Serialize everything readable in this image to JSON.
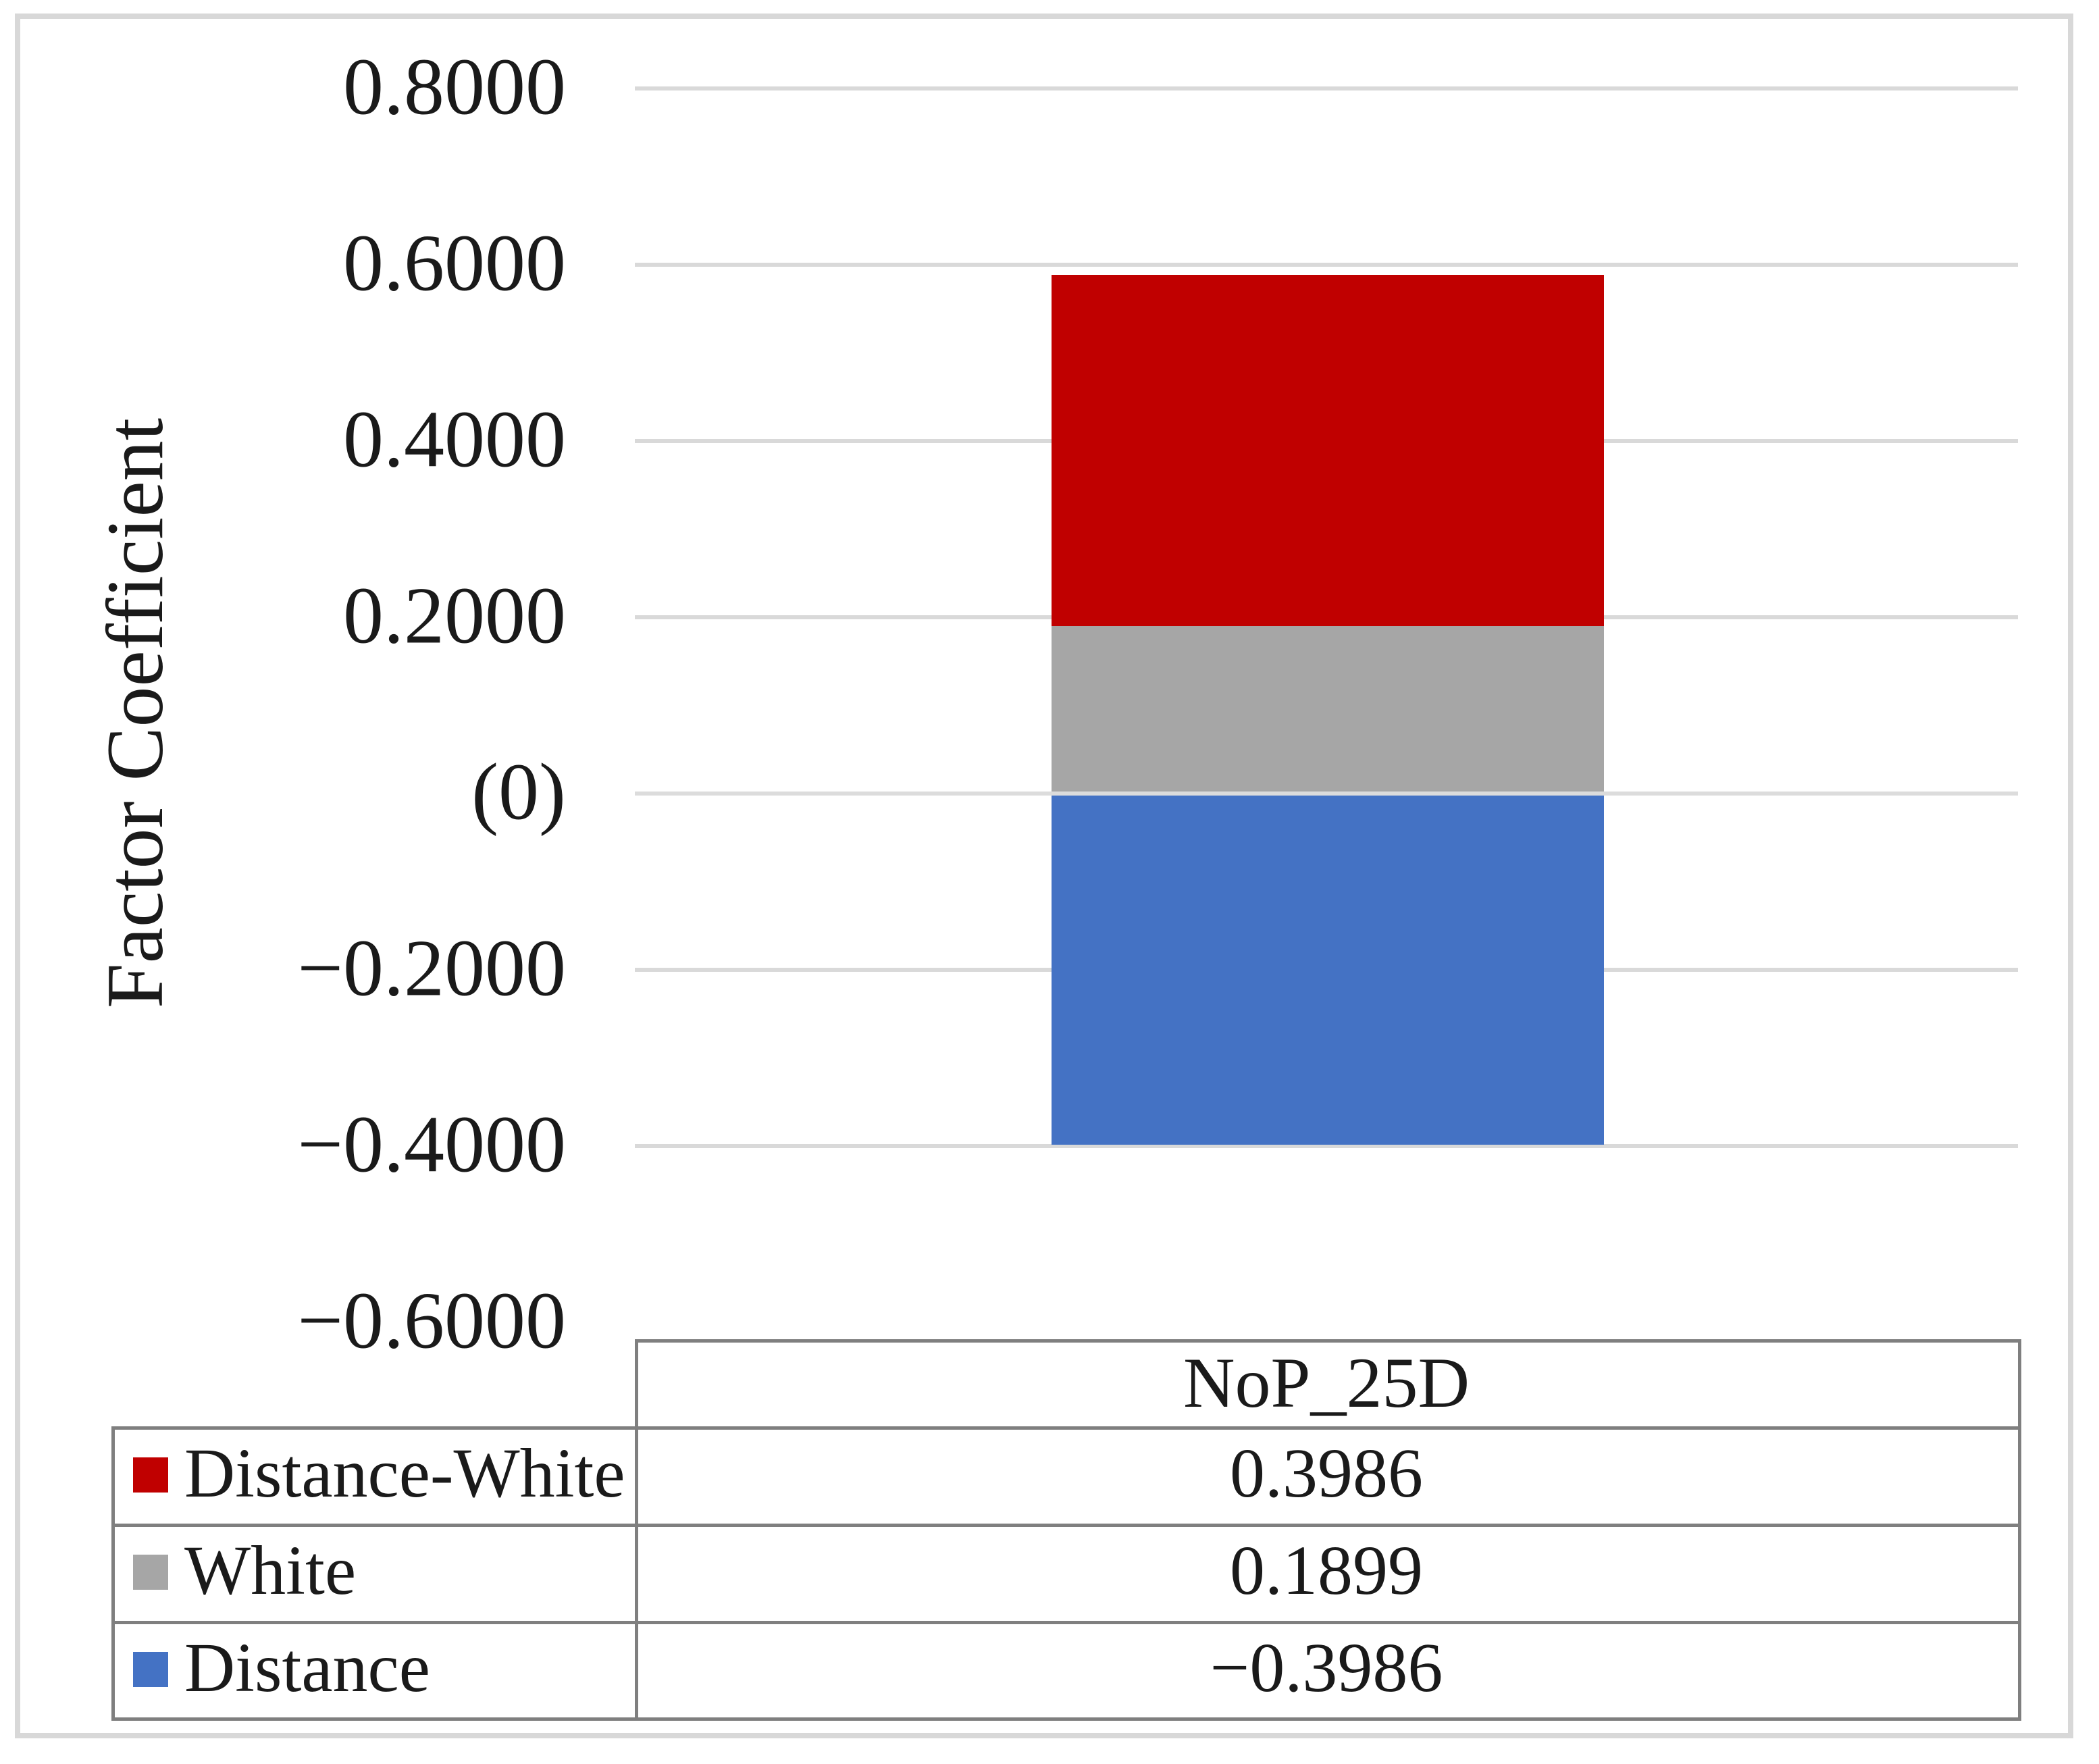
{
  "figure": {
    "background": "#ffffff",
    "frame_color": "#d8d8d8",
    "gridline_color": "#d9d9d9",
    "table_line_color": "#7f7f7f",
    "text_color": "#1a1a1a"
  },
  "chart_data": {
    "type": "bar",
    "subtype": "stacked-column",
    "title": "",
    "xlabel": "",
    "ylabel": "Factor Coefficient",
    "categories": [
      "NoP_25D"
    ],
    "series": [
      {
        "name": "Distance-White",
        "color": "#c00000",
        "values": [
          0.3986
        ]
      },
      {
        "name": "White",
        "color": "#a6a6a6",
        "values": [
          0.1899
        ]
      },
      {
        "name": "Distance",
        "color": "#4472c4",
        "values": [
          -0.3986
        ]
      }
    ],
    "ylim": [
      -0.6,
      0.8
    ],
    "grid": true,
    "legend_position": "left-of-data-table",
    "yticks": [
      {
        "v": 0.8,
        "label": "0.8000",
        "gridline": true
      },
      {
        "v": 0.6,
        "label": "0.6000",
        "gridline": true
      },
      {
        "v": 0.4,
        "label": "0.4000",
        "gridline": true
      },
      {
        "v": 0.2,
        "label": "0.2000",
        "gridline": true
      },
      {
        "v": 0.0,
        "label": "(0)",
        "gridline": true
      },
      {
        "v": -0.2,
        "label": "−0.2000",
        "gridline": true
      },
      {
        "v": -0.4,
        "label": "−0.4000",
        "gridline": true
      },
      {
        "v": -0.6,
        "label": "−0.6000",
        "gridline": false
      }
    ]
  },
  "axis": {
    "title": "Factor Coefficient"
  },
  "data_table": {
    "column_header": "NoP_25D",
    "rows": [
      {
        "label": "Distance-White",
        "swatch_color": "#c00000",
        "value": "0.3986"
      },
      {
        "label": "White",
        "swatch_color": "#a6a6a6",
        "value": "0.1899"
      },
      {
        "label": "Distance",
        "swatch_color": "#4472c4",
        "value": "−0.3986"
      }
    ]
  }
}
